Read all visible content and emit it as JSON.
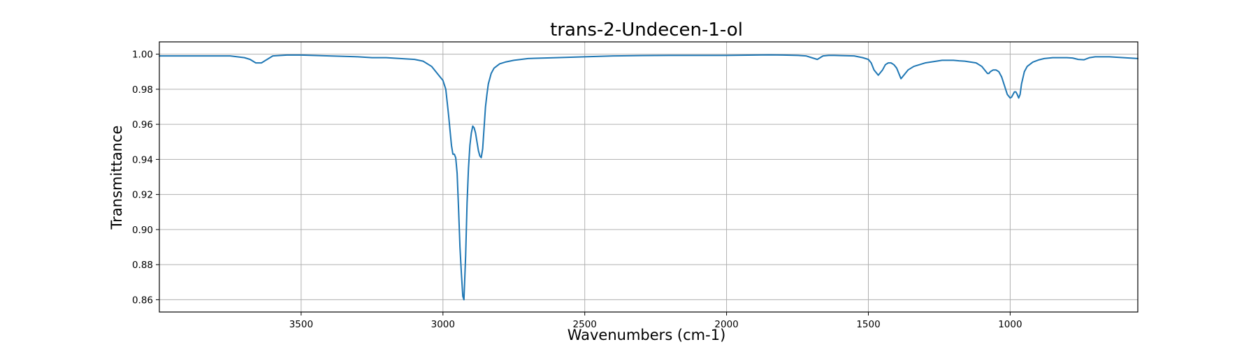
{
  "chart_data": {
    "type": "line",
    "title": "trans-2-Undecen-1-ol",
    "xlabel": "Wavenumbers (cm-1)",
    "ylabel": "Transmittance",
    "xlim": [
      4000,
      550
    ],
    "ylim": [
      0.853,
      1.007
    ],
    "x_ticks": [
      3500,
      3000,
      2500,
      2000,
      1500,
      1000
    ],
    "y_ticks": [
      0.86,
      0.88,
      0.9,
      0.92,
      0.94,
      0.96,
      0.98,
      1.0
    ],
    "y_tick_labels": [
      "0.86",
      "0.88",
      "0.90",
      "0.92",
      "0.94",
      "0.96",
      "0.98",
      "1.00"
    ],
    "grid": true,
    "line_color": "#1f77b4",
    "series": [
      {
        "x": [
          4000,
          3900,
          3800,
          3750,
          3700,
          3680,
          3660,
          3640,
          3620,
          3600,
          3550,
          3500,
          3400,
          3300,
          3250,
          3200,
          3150,
          3100,
          3070,
          3040,
          3020,
          3010,
          3000,
          2990,
          2980,
          2970,
          2965,
          2960,
          2955,
          2950,
          2945,
          2940,
          2935,
          2930,
          2926,
          2920,
          2915,
          2910,
          2905,
          2900,
          2895,
          2890,
          2885,
          2880,
          2875,
          2870,
          2865,
          2860,
          2855,
          2850,
          2845,
          2840,
          2830,
          2820,
          2800,
          2780,
          2750,
          2700,
          2600,
          2500,
          2400,
          2300,
          2200,
          2100,
          2000,
          1900,
          1850,
          1800,
          1750,
          1720,
          1700,
          1690,
          1680,
          1670,
          1660,
          1640,
          1620,
          1600,
          1550,
          1520,
          1500,
          1490,
          1480,
          1470,
          1465,
          1460,
          1450,
          1440,
          1430,
          1420,
          1410,
          1400,
          1390,
          1385,
          1380,
          1370,
          1360,
          1340,
          1320,
          1300,
          1280,
          1260,
          1240,
          1220,
          1200,
          1180,
          1160,
          1140,
          1120,
          1100,
          1090,
          1080,
          1075,
          1070,
          1060,
          1050,
          1040,
          1030,
          1020,
          1010,
          1000,
          995,
          990,
          985,
          980,
          975,
          970,
          965,
          960,
          950,
          940,
          920,
          900,
          880,
          850,
          800,
          780,
          760,
          740,
          720,
          700,
          650,
          600,
          550
        ],
        "y": [
          0.999,
          0.999,
          0.999,
          0.999,
          0.998,
          0.997,
          0.995,
          0.995,
          0.997,
          0.999,
          0.9995,
          0.9995,
          0.999,
          0.9985,
          0.998,
          0.998,
          0.9975,
          0.997,
          0.996,
          0.993,
          0.989,
          0.987,
          0.985,
          0.98,
          0.965,
          0.948,
          0.943,
          0.943,
          0.941,
          0.932,
          0.912,
          0.89,
          0.875,
          0.862,
          0.86,
          0.885,
          0.915,
          0.935,
          0.948,
          0.955,
          0.959,
          0.958,
          0.955,
          0.95,
          0.945,
          0.942,
          0.941,
          0.946,
          0.958,
          0.97,
          0.977,
          0.983,
          0.989,
          0.992,
          0.9945,
          0.9955,
          0.9965,
          0.9975,
          0.998,
          0.9985,
          0.999,
          0.9992,
          0.9993,
          0.9993,
          0.9993,
          0.9995,
          0.9996,
          0.9995,
          0.9993,
          0.999,
          0.998,
          0.9975,
          0.997,
          0.998,
          0.999,
          0.9993,
          0.9993,
          0.9992,
          0.999,
          0.998,
          0.997,
          0.995,
          0.991,
          0.989,
          0.988,
          0.989,
          0.991,
          0.994,
          0.995,
          0.995,
          0.994,
          0.992,
          0.988,
          0.986,
          0.987,
          0.989,
          0.991,
          0.993,
          0.994,
          0.995,
          0.9955,
          0.996,
          0.9965,
          0.9965,
          0.9965,
          0.9962,
          0.996,
          0.9955,
          0.995,
          0.993,
          0.991,
          0.989,
          0.989,
          0.99,
          0.991,
          0.991,
          0.99,
          0.987,
          0.982,
          0.977,
          0.975,
          0.9755,
          0.977,
          0.9785,
          0.9785,
          0.977,
          0.975,
          0.977,
          0.983,
          0.99,
          0.993,
          0.9955,
          0.9967,
          0.9975,
          0.998,
          0.998,
          0.9978,
          0.997,
          0.9968,
          0.998,
          0.9985,
          0.9985,
          0.998,
          0.9975
        ]
      }
    ]
  }
}
